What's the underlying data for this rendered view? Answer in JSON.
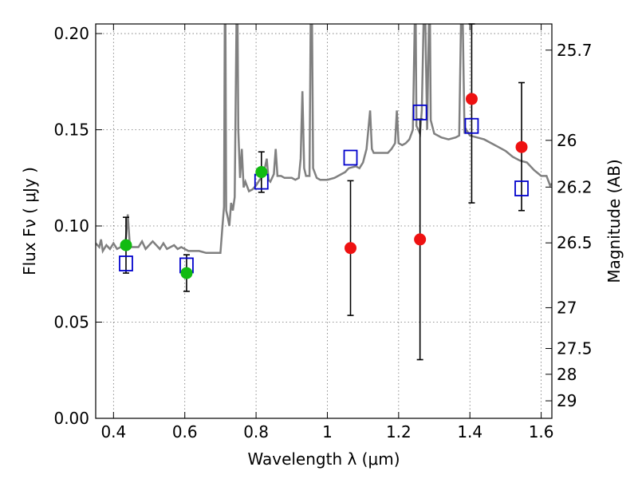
{
  "chart_data": {
    "type": "scatter",
    "xlabel": "Wavelength  λ (μm)",
    "ylabel": "Flux  Fν  ( μJy )",
    "y2label": "Magnitude (AB)",
    "xlim": [
      0.35,
      1.63
    ],
    "ylim": [
      0.0,
      0.205
    ],
    "xticks": [
      0.4,
      0.6,
      0.8,
      1.0,
      1.2,
      1.4,
      1.6
    ],
    "xtick_labels": [
      "0.4",
      "0.6",
      "0.8",
      "1",
      "1.2",
      "1.4",
      "1.6"
    ],
    "yticks": [
      0.0,
      0.05,
      0.1,
      0.15,
      0.2
    ],
    "ytick_labels": [
      "0.00",
      "0.05",
      "0.10",
      "0.15",
      "0.20"
    ],
    "y2ticks": [
      {
        "label": "25.7",
        "flux": 0.1914
      },
      {
        "label": "26",
        "flux": 0.1445
      },
      {
        "label": "26.2",
        "flux": 0.1202
      },
      {
        "label": "26.5",
        "flux": 0.0912
      },
      {
        "label": "27",
        "flux": 0.0575
      },
      {
        "label": "27.5",
        "flux": 0.0363
      },
      {
        "label": "28",
        "flux": 0.0229
      },
      {
        "label": "29",
        "flux": 0.0091
      }
    ],
    "grid": true,
    "colors": {
      "spectrum": "#808080",
      "green_points": "#11bb11",
      "red_points": "#ee1111",
      "model_squares": "#0000cc",
      "errorbars": "#000000"
    },
    "series": [
      {
        "marker": "green-circle",
        "points": [
          {
            "x": 0.435,
            "y": 0.09,
            "yerr_low": 0.0755,
            "yerr_high": 0.1045
          },
          {
            "x": 0.605,
            "y": 0.0755,
            "yerr_low": 0.066,
            "yerr_high": 0.085
          },
          {
            "x": 0.815,
            "y": 0.128,
            "yerr_low": 0.1175,
            "yerr_high": 0.1385
          }
        ]
      },
      {
        "marker": "red-circle",
        "points": [
          {
            "x": 1.065,
            "y": 0.0885,
            "yerr_low": 0.0535,
            "yerr_high": 0.1235
          },
          {
            "x": 1.26,
            "y": 0.093,
            "yerr_low": 0.0305,
            "yerr_high": 0.1555
          },
          {
            "x": 1.405,
            "y": 0.166,
            "yerr_low": 0.112,
            "yerr_high": 0.205
          },
          {
            "x": 1.545,
            "y": 0.141,
            "yerr_low": 0.108,
            "yerr_high": 0.1745
          }
        ]
      },
      {
        "marker": "blue-open-square",
        "points": [
          {
            "x": 0.435,
            "y": 0.0805
          },
          {
            "x": 0.605,
            "y": 0.0795
          },
          {
            "x": 0.815,
            "y": 0.123
          },
          {
            "x": 1.065,
            "y": 0.1355
          },
          {
            "x": 1.26,
            "y": 0.159
          },
          {
            "x": 1.405,
            "y": 0.152
          },
          {
            "x": 1.545,
            "y": 0.1195
          }
        ]
      },
      {
        "marker": "gray-line",
        "points": [
          [
            0.35,
            0.091
          ],
          [
            0.36,
            0.089
          ],
          [
            0.365,
            0.093
          ],
          [
            0.37,
            0.087
          ],
          [
            0.38,
            0.09
          ],
          [
            0.39,
            0.088
          ],
          [
            0.4,
            0.091
          ],
          [
            0.41,
            0.088
          ],
          [
            0.42,
            0.089
          ],
          [
            0.43,
            0.088
          ],
          [
            0.435,
            0.094
          ],
          [
            0.44,
            0.106
          ],
          [
            0.445,
            0.092
          ],
          [
            0.45,
            0.089
          ],
          [
            0.47,
            0.089
          ],
          [
            0.48,
            0.092
          ],
          [
            0.49,
            0.088
          ],
          [
            0.5,
            0.09
          ],
          [
            0.51,
            0.092
          ],
          [
            0.52,
            0.09
          ],
          [
            0.53,
            0.088
          ],
          [
            0.54,
            0.091
          ],
          [
            0.55,
            0.088
          ],
          [
            0.56,
            0.089
          ],
          [
            0.57,
            0.09
          ],
          [
            0.58,
            0.088
          ],
          [
            0.59,
            0.089
          ],
          [
            0.6,
            0.088
          ],
          [
            0.61,
            0.087
          ],
          [
            0.62,
            0.087
          ],
          [
            0.64,
            0.087
          ],
          [
            0.66,
            0.086
          ],
          [
            0.68,
            0.086
          ],
          [
            0.7,
            0.086
          ],
          [
            0.705,
            0.098
          ],
          [
            0.71,
            0.11
          ],
          [
            0.712,
            0.205
          ],
          [
            0.714,
            0.205
          ],
          [
            0.716,
            0.108
          ],
          [
            0.72,
            0.105
          ],
          [
            0.725,
            0.1
          ],
          [
            0.73,
            0.112
          ],
          [
            0.735,
            0.108
          ],
          [
            0.74,
            0.115
          ],
          [
            0.745,
            0.205
          ],
          [
            0.748,
            0.205
          ],
          [
            0.75,
            0.15
          ],
          [
            0.755,
            0.125
          ],
          [
            0.76,
            0.14
          ],
          [
            0.765,
            0.12
          ],
          [
            0.77,
            0.123
          ],
          [
            0.78,
            0.118
          ],
          [
            0.79,
            0.119
          ],
          [
            0.8,
            0.121
          ],
          [
            0.81,
            0.124
          ],
          [
            0.82,
            0.126
          ],
          [
            0.83,
            0.135
          ],
          [
            0.835,
            0.124
          ],
          [
            0.84,
            0.123
          ],
          [
            0.85,
            0.127
          ],
          [
            0.855,
            0.14
          ],
          [
            0.86,
            0.126
          ],
          [
            0.87,
            0.126
          ],
          [
            0.88,
            0.125
          ],
          [
            0.9,
            0.125
          ],
          [
            0.91,
            0.124
          ],
          [
            0.92,
            0.125
          ],
          [
            0.925,
            0.135
          ],
          [
            0.93,
            0.17
          ],
          [
            0.935,
            0.13
          ],
          [
            0.94,
            0.126
          ],
          [
            0.95,
            0.126
          ],
          [
            0.953,
            0.205
          ],
          [
            0.957,
            0.205
          ],
          [
            0.96,
            0.13
          ],
          [
            0.97,
            0.125
          ],
          [
            0.98,
            0.124
          ],
          [
            1.0,
            0.124
          ],
          [
            1.02,
            0.125
          ],
          [
            1.04,
            0.127
          ],
          [
            1.05,
            0.128
          ],
          [
            1.06,
            0.13
          ],
          [
            1.08,
            0.131
          ],
          [
            1.09,
            0.13
          ],
          [
            1.1,
            0.133
          ],
          [
            1.11,
            0.14
          ],
          [
            1.12,
            0.16
          ],
          [
            1.125,
            0.14
          ],
          [
            1.13,
            0.138
          ],
          [
            1.15,
            0.138
          ],
          [
            1.17,
            0.138
          ],
          [
            1.18,
            0.14
          ],
          [
            1.19,
            0.143
          ],
          [
            1.195,
            0.16
          ],
          [
            1.2,
            0.143
          ],
          [
            1.21,
            0.142
          ],
          [
            1.22,
            0.143
          ],
          [
            1.23,
            0.145
          ],
          [
            1.24,
            0.15
          ],
          [
            1.245,
            0.205
          ],
          [
            1.248,
            0.205
          ],
          [
            1.25,
            0.152
          ],
          [
            1.26,
            0.148
          ],
          [
            1.265,
            0.16
          ],
          [
            1.27,
            0.205
          ],
          [
            1.275,
            0.205
          ],
          [
            1.28,
            0.15
          ],
          [
            1.285,
            0.205
          ],
          [
            1.288,
            0.205
          ],
          [
            1.29,
            0.155
          ],
          [
            1.3,
            0.148
          ],
          [
            1.32,
            0.146
          ],
          [
            1.34,
            0.145
          ],
          [
            1.36,
            0.146
          ],
          [
            1.37,
            0.147
          ],
          [
            1.375,
            0.205
          ],
          [
            1.38,
            0.205
          ],
          [
            1.385,
            0.148
          ],
          [
            1.39,
            0.15
          ],
          [
            1.4,
            0.147
          ],
          [
            1.42,
            0.146
          ],
          [
            1.44,
            0.145
          ],
          [
            1.46,
            0.143
          ],
          [
            1.48,
            0.141
          ],
          [
            1.5,
            0.139
          ],
          [
            1.52,
            0.136
          ],
          [
            1.54,
            0.134
          ],
          [
            1.56,
            0.133
          ],
          [
            1.58,
            0.129
          ],
          [
            1.6,
            0.126
          ],
          [
            1.615,
            0.126
          ],
          [
            1.625,
            0.121
          ],
          [
            1.63,
            0.122
          ]
        ]
      }
    ]
  }
}
